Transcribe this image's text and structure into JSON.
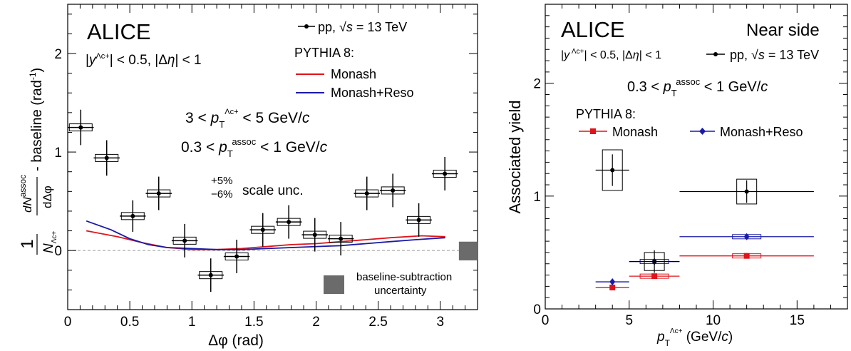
{
  "chart_data": [
    {
      "type": "scatter",
      "experiment": "ALICE",
      "selection": "|y^Λc+| < 0.5, |Δη| < 1",
      "pt_trig": "3 < pT^Λc+ < 5 GeV/c",
      "pt_assoc": "0.3 < pT^assoc < 1 GeV/c",
      "scale_unc": {
        "plus": "+5%",
        "minus": "−6%",
        "text": "scale unc."
      },
      "baseline_unc_label": [
        "baseline-subtraction",
        "uncertainty"
      ],
      "xlabel": "Δφ (rad)",
      "ylabel": "1/N_Λc+ dN^assoc/dΔφ - baseline (rad^-1)",
      "xlim": [
        0,
        3.3
      ],
      "ylim": [
        -0.6,
        2.5
      ],
      "xticks": [
        "0",
        "0.5",
        "1",
        "1.5",
        "2",
        "2.5",
        "3"
      ],
      "yticks": [
        "0",
        "1",
        "2"
      ],
      "legend": {
        "data_label": "pp, √s = 13 TeV",
        "model_title": "PYTHIA 8:",
        "entries": [
          "Monash",
          "Monash+Reso"
        ]
      },
      "colors": {
        "data": "#000000",
        "monash": "#e0131a",
        "reso": "#1a1aa8",
        "band": "#6b6b6b",
        "zero_line": "#9a9a9a"
      },
      "series": [
        {
          "name": "pp, √s = 13 TeV",
          "x": [
            0.105,
            0.314,
            0.524,
            0.733,
            0.942,
            1.152,
            1.361,
            1.571,
            1.78,
            1.99,
            2.199,
            2.409,
            2.618,
            2.827,
            3.037
          ],
          "y": [
            1.25,
            0.94,
            0.35,
            0.58,
            0.1,
            -0.25,
            -0.06,
            0.21,
            0.29,
            0.16,
            0.12,
            0.58,
            0.61,
            0.31,
            0.78
          ],
          "stat_err": [
            0.18,
            0.18,
            0.16,
            0.17,
            0.17,
            0.17,
            0.17,
            0.17,
            0.17,
            0.17,
            0.17,
            0.17,
            0.17,
            0.17,
            0.17
          ]
        },
        {
          "name": "Monash",
          "x": [
            0.15,
            0.4,
            0.6,
            0.8,
            1.0,
            1.2,
            1.4,
            1.6,
            1.8,
            2.0,
            2.2,
            2.4,
            2.6,
            2.85,
            3.04
          ],
          "y": [
            0.2,
            0.14,
            0.08,
            0.03,
            0.01,
            0.01,
            0.02,
            0.04,
            0.06,
            0.07,
            0.09,
            0.11,
            0.13,
            0.15,
            0.14
          ]
        },
        {
          "name": "Monash+Reso",
          "x": [
            0.15,
            0.35,
            0.5,
            0.65,
            0.8,
            1.0,
            1.2,
            1.4,
            1.6,
            1.8,
            2.0,
            2.2,
            2.4,
            2.6,
            2.8,
            3.04
          ],
          "y": [
            0.3,
            0.21,
            0.12,
            0.06,
            0.03,
            0.02,
            0.01,
            0.01,
            0.02,
            0.03,
            0.04,
            0.05,
            0.07,
            0.09,
            0.11,
            0.13
          ]
        }
      ],
      "baseline_uncertainty": {
        "x": [
          3.15,
          3.3
        ],
        "y": [
          -0.1,
          0.09
        ]
      }
    },
    {
      "type": "scatter",
      "experiment": "ALICE",
      "region": "Near side",
      "selection": "|y^Λc+| < 0.5, |Δη| < 1",
      "pt_assoc": "0.3 < pT^assoc < 1 GeV/c",
      "xlabel": "pT^Λc+ (GeV/c)",
      "ylabel": "Associated yield",
      "xlim": [
        0,
        18
      ],
      "ylim": [
        0,
        2.7
      ],
      "xticks": [
        "0",
        "5",
        "10",
        "15"
      ],
      "yticks": [
        "0",
        "1",
        "2"
      ],
      "legend": {
        "data_label": "pp, √s = 13 TeV",
        "model_title": "PYTHIA 8:",
        "entries": [
          "Monash",
          "Monash+Reso"
        ]
      },
      "colors": {
        "data": "#000000",
        "monash": "#e0131a",
        "reso": "#1a1aa8"
      },
      "series": [
        {
          "name": "pp, √s = 13 TeV",
          "x": [
            4,
            6.5,
            12
          ],
          "xerr": [
            [
              3,
              5
            ],
            [
              5,
              8
            ],
            [
              8,
              16
            ]
          ],
          "y": [
            1.23,
            0.42,
            1.04
          ],
          "stat_err": [
            0.14,
            0.1,
            0.1
          ],
          "syst_err": [
            0.18,
            0.08,
            0.11
          ]
        },
        {
          "name": "Monash",
          "x": [
            4,
            6.5,
            12
          ],
          "xerr": [
            [
              3,
              5
            ],
            [
              5,
              8
            ],
            [
              8,
              16
            ]
          ],
          "y": [
            0.19,
            0.29,
            0.47
          ]
        },
        {
          "name": "Monash+Reso",
          "x": [
            4,
            6.5,
            12
          ],
          "xerr": [
            [
              3,
              5
            ],
            [
              5,
              8
            ],
            [
              8,
              16
            ]
          ],
          "y": [
            0.24,
            0.42,
            0.64
          ]
        }
      ]
    }
  ]
}
